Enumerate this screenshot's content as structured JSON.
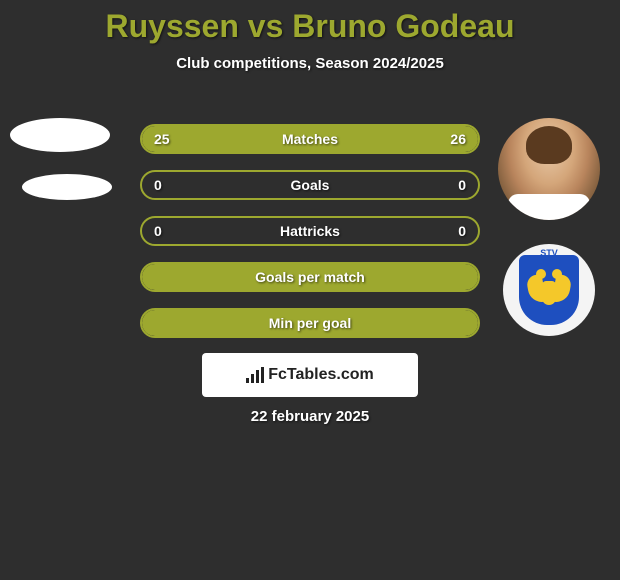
{
  "title": "Ruyssen vs Bruno Godeau",
  "subtitle": "Club competitions, Season 2024/2025",
  "date": "22 february 2025",
  "watermark": "FcTables.com",
  "colors": {
    "background": "#2e2e2e",
    "accent": "#9da82f",
    "text": "#ffffff",
    "badge_primary": "#1e4fbf",
    "badge_secondary": "#f4c82a",
    "watermark_bg": "#ffffff",
    "watermark_text": "#222222"
  },
  "club_badge": {
    "label": "STV"
  },
  "rows": [
    {
      "label": "Matches",
      "left": "25",
      "right": "26",
      "left_fill_pct": 49,
      "right_fill_pct": 51
    },
    {
      "label": "Goals",
      "left": "0",
      "right": "0",
      "left_fill_pct": 0,
      "right_fill_pct": 0
    },
    {
      "label": "Hattricks",
      "left": "0",
      "right": "0",
      "left_fill_pct": 0,
      "right_fill_pct": 0
    },
    {
      "label": "Goals per match",
      "left": "",
      "right": "",
      "left_fill_pct": 100,
      "right_fill_pct": 0
    },
    {
      "label": "Min per goal",
      "left": "",
      "right": "",
      "left_fill_pct": 100,
      "right_fill_pct": 0
    }
  ]
}
